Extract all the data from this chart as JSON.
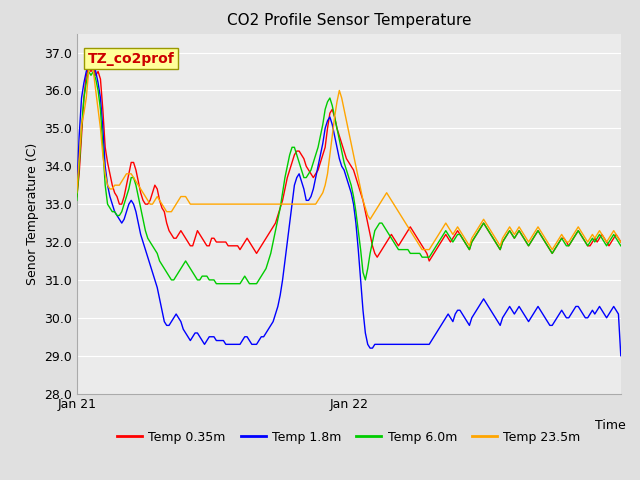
{
  "title": "CO2 Profile Sensor Temperature",
  "ylabel": "Senor Temperature (C)",
  "xlabel": "Time",
  "ylim": [
    28.0,
    37.5
  ],
  "yticks": [
    28.0,
    29.0,
    30.0,
    31.0,
    32.0,
    33.0,
    34.0,
    35.0,
    36.0,
    37.0
  ],
  "colors": {
    "red": "#FF0000",
    "blue": "#0000FF",
    "green": "#00CC00",
    "orange": "#FFA500"
  },
  "annotation_box": {
    "text": "TZ_co2prof",
    "facecolor": "#FFFF99",
    "edgecolor": "#999900",
    "textcolor": "#CC0000",
    "fontsize": 10,
    "fontweight": "bold"
  },
  "legend_labels": [
    "Temp 0.35m",
    "Temp 1.8m",
    "Temp 6.0m",
    "Temp 23.5m"
  ],
  "background_color": "#E0E0E0",
  "plot_bg_color": "#EBEBEB",
  "grid_color": "#FFFFFF",
  "x_tick_labels": [
    "Jan 21",
    "Jan 22"
  ],
  "x_tick_positions": [
    0,
    0.5
  ],
  "total_points": 100,
  "red_data": [
    33.2,
    33.8,
    34.8,
    35.8,
    36.4,
    36.6,
    36.5,
    36.6,
    36.4,
    36.5,
    36.3,
    35.5,
    34.5,
    34.1,
    33.8,
    33.5,
    33.3,
    33.2,
    33.0,
    33.0,
    33.2,
    33.5,
    33.8,
    34.1,
    34.1,
    33.9,
    33.6,
    33.3,
    33.1,
    33.0,
    33.0,
    33.1,
    33.3,
    33.5,
    33.4,
    33.1,
    32.9,
    32.8,
    32.5,
    32.3,
    32.2,
    32.1,
    32.1,
    32.2,
    32.3,
    32.2,
    32.1,
    32.0,
    31.9,
    31.9,
    32.1,
    32.3,
    32.2,
    32.1,
    32.0,
    31.9,
    31.9,
    32.1,
    32.1,
    32.0,
    32.0,
    32.0,
    32.0,
    32.0,
    31.9,
    31.9,
    31.9,
    31.9,
    31.9,
    31.8,
    31.9,
    32.0,
    32.1,
    32.0,
    31.9,
    31.8,
    31.7,
    31.8,
    31.9,
    32.0,
    32.1,
    32.2,
    32.3,
    32.4,
    32.5,
    32.7,
    32.9,
    33.1,
    33.4,
    33.7,
    33.9,
    34.1,
    34.3,
    34.4,
    34.4,
    34.3,
    34.2,
    34.0,
    33.9,
    33.8,
    33.7,
    33.8,
    33.9,
    34.1,
    34.3,
    34.5,
    35.0,
    35.4,
    35.5,
    35.3,
    35.0,
    34.8,
    34.6,
    34.4,
    34.2,
    34.1,
    34.0,
    33.9,
    33.7,
    33.5,
    33.3,
    33.1,
    32.8,
    32.5,
    32.2,
    31.9,
    31.7,
    31.6,
    31.7,
    31.8,
    31.9,
    32.0,
    32.1,
    32.2,
    32.1,
    32.0,
    31.9,
    32.0,
    32.1,
    32.2,
    32.3,
    32.4,
    32.3,
    32.2,
    32.1,
    32.0,
    31.9,
    31.8,
    31.7,
    31.5,
    31.6,
    31.7,
    31.8,
    31.9,
    32.0,
    32.1,
    32.2,
    32.1,
    32.0,
    32.1,
    32.2,
    32.3,
    32.2,
    32.1,
    32.0,
    31.9,
    31.8,
    32.0,
    32.1,
    32.2,
    32.3,
    32.4,
    32.5,
    32.4,
    32.3,
    32.2,
    32.1,
    32.0,
    31.9,
    31.8,
    32.0,
    32.1,
    32.2,
    32.3,
    32.2,
    32.1,
    32.2,
    32.3,
    32.2,
    32.1,
    32.0,
    31.9,
    32.0,
    32.1,
    32.2,
    32.3,
    32.2,
    32.1,
    32.0,
    31.9,
    31.8,
    31.7,
    31.8,
    31.9,
    32.0,
    32.1,
    32.1,
    32.0,
    31.9,
    32.0,
    32.1,
    32.2,
    32.3,
    32.2,
    32.1,
    32.0,
    31.9,
    31.9,
    32.0,
    32.1,
    32.0,
    32.1,
    32.2,
    32.1,
    32.0,
    31.9,
    32.0,
    32.1,
    32.2,
    32.1,
    32.0
  ],
  "blue_data": [
    33.3,
    34.8,
    35.8,
    36.2,
    36.5,
    36.7,
    36.6,
    36.7,
    36.5,
    36.2,
    35.8,
    35.0,
    34.0,
    33.5,
    33.2,
    33.0,
    32.8,
    32.7,
    32.6,
    32.5,
    32.6,
    32.8,
    33.0,
    33.1,
    33.0,
    32.8,
    32.5,
    32.2,
    32.0,
    31.8,
    31.6,
    31.4,
    31.2,
    31.0,
    30.8,
    30.5,
    30.2,
    29.9,
    29.8,
    29.8,
    29.9,
    30.0,
    30.1,
    30.0,
    29.9,
    29.7,
    29.6,
    29.5,
    29.4,
    29.5,
    29.6,
    29.6,
    29.5,
    29.4,
    29.3,
    29.4,
    29.5,
    29.5,
    29.5,
    29.4,
    29.4,
    29.4,
    29.4,
    29.3,
    29.3,
    29.3,
    29.3,
    29.3,
    29.3,
    29.3,
    29.4,
    29.5,
    29.5,
    29.4,
    29.3,
    29.3,
    29.3,
    29.4,
    29.5,
    29.5,
    29.6,
    29.7,
    29.8,
    29.9,
    30.1,
    30.3,
    30.6,
    31.0,
    31.5,
    32.0,
    32.5,
    33.0,
    33.5,
    33.7,
    33.8,
    33.6,
    33.4,
    33.1,
    33.1,
    33.2,
    33.4,
    33.7,
    34.0,
    34.3,
    34.6,
    35.0,
    35.2,
    35.3,
    35.1,
    34.8,
    34.5,
    34.2,
    34.0,
    33.9,
    33.7,
    33.5,
    33.3,
    33.0,
    32.5,
    31.8,
    31.0,
    30.2,
    29.6,
    29.3,
    29.2,
    29.2,
    29.3,
    29.3,
    29.3,
    29.3,
    29.3,
    29.3,
    29.3,
    29.3,
    29.3,
    29.3,
    29.3,
    29.3,
    29.3,
    29.3,
    29.3,
    29.3,
    29.3,
    29.3,
    29.3,
    29.3,
    29.3,
    29.3,
    29.3,
    29.3,
    29.4,
    29.5,
    29.6,
    29.7,
    29.8,
    29.9,
    30.0,
    30.1,
    30.0,
    29.9,
    30.1,
    30.2,
    30.2,
    30.1,
    30.0,
    29.9,
    29.8,
    30.0,
    30.1,
    30.2,
    30.3,
    30.4,
    30.5,
    30.4,
    30.3,
    30.2,
    30.1,
    30.0,
    29.9,
    29.8,
    30.0,
    30.1,
    30.2,
    30.3,
    30.2,
    30.1,
    30.2,
    30.3,
    30.2,
    30.1,
    30.0,
    29.9,
    30.0,
    30.1,
    30.2,
    30.3,
    30.2,
    30.1,
    30.0,
    29.9,
    29.8,
    29.8,
    29.9,
    30.0,
    30.1,
    30.2,
    30.1,
    30.0,
    30.0,
    30.1,
    30.2,
    30.3,
    30.3,
    30.2,
    30.1,
    30.0,
    30.0,
    30.1,
    30.2,
    30.1,
    30.2,
    30.3,
    30.2,
    30.1,
    30.0,
    30.1,
    30.2,
    30.3,
    30.2,
    30.1,
    29.0
  ],
  "green_data": [
    33.1,
    34.0,
    35.0,
    35.8,
    36.2,
    36.5,
    36.4,
    36.5,
    36.3,
    36.0,
    35.5,
    34.5,
    33.5,
    33.0,
    32.9,
    32.8,
    32.8,
    32.7,
    32.7,
    32.8,
    33.0,
    33.2,
    33.4,
    33.7,
    33.7,
    33.5,
    33.2,
    32.9,
    32.6,
    32.3,
    32.1,
    32.0,
    31.9,
    31.8,
    31.7,
    31.5,
    31.4,
    31.3,
    31.2,
    31.1,
    31.0,
    31.0,
    31.1,
    31.2,
    31.3,
    31.4,
    31.5,
    31.4,
    31.3,
    31.2,
    31.1,
    31.0,
    31.0,
    31.1,
    31.1,
    31.1,
    31.0,
    31.0,
    31.0,
    30.9,
    30.9,
    30.9,
    30.9,
    30.9,
    30.9,
    30.9,
    30.9,
    30.9,
    30.9,
    30.9,
    31.0,
    31.1,
    31.0,
    30.9,
    30.9,
    30.9,
    30.9,
    31.0,
    31.1,
    31.2,
    31.3,
    31.5,
    31.7,
    32.0,
    32.3,
    32.6,
    32.9,
    33.3,
    33.7,
    34.0,
    34.3,
    34.5,
    34.5,
    34.3,
    34.1,
    33.9,
    33.7,
    33.7,
    33.8,
    33.9,
    34.1,
    34.3,
    34.5,
    34.8,
    35.1,
    35.5,
    35.7,
    35.8,
    35.6,
    35.3,
    35.0,
    34.7,
    34.4,
    34.1,
    33.9,
    33.7,
    33.5,
    33.2,
    32.8,
    32.3,
    31.8,
    31.2,
    31.0,
    31.3,
    31.7,
    32.0,
    32.3,
    32.4,
    32.5,
    32.5,
    32.4,
    32.3,
    32.2,
    32.1,
    32.0,
    31.9,
    31.8,
    31.8,
    31.8,
    31.8,
    31.8,
    31.7,
    31.7,
    31.7,
    31.7,
    31.7,
    31.6,
    31.6,
    31.6,
    31.6,
    31.7,
    31.8,
    31.9,
    32.0,
    32.1,
    32.2,
    32.3,
    32.2,
    32.1,
    32.0,
    32.1,
    32.2,
    32.2,
    32.1,
    32.0,
    31.9,
    31.8,
    32.0,
    32.1,
    32.2,
    32.3,
    32.4,
    32.5,
    32.4,
    32.3,
    32.2,
    32.1,
    32.0,
    31.9,
    31.8,
    32.0,
    32.1,
    32.2,
    32.3,
    32.2,
    32.1,
    32.2,
    32.3,
    32.2,
    32.1,
    32.0,
    31.9,
    32.0,
    32.1,
    32.2,
    32.3,
    32.2,
    32.1,
    32.0,
    31.9,
    31.8,
    31.7,
    31.8,
    31.9,
    32.0,
    32.1,
    32.0,
    31.9,
    31.9,
    32.0,
    32.1,
    32.2,
    32.3,
    32.2,
    32.1,
    32.0,
    31.9,
    32.0,
    32.1,
    32.0,
    32.1,
    32.2,
    32.1,
    32.0,
    31.9,
    32.0,
    32.1,
    32.2,
    32.1,
    32.0,
    31.9
  ],
  "orange_data": [
    33.3,
    34.2,
    35.1,
    35.4,
    35.8,
    36.5,
    36.7,
    36.5,
    36.0,
    35.5,
    35.0,
    34.3,
    33.8,
    33.5,
    33.4,
    33.4,
    33.5,
    33.5,
    33.5,
    33.6,
    33.7,
    33.8,
    33.8,
    33.8,
    33.7,
    33.6,
    33.5,
    33.4,
    33.3,
    33.2,
    33.1,
    33.0,
    33.0,
    33.1,
    33.2,
    33.1,
    33.0,
    32.9,
    32.8,
    32.8,
    32.8,
    32.9,
    33.0,
    33.1,
    33.2,
    33.2,
    33.2,
    33.1,
    33.0,
    33.0,
    33.0,
    33.0,
    33.0,
    33.0,
    33.0,
    33.0,
    33.0,
    33.0,
    33.0,
    33.0,
    33.0,
    33.0,
    33.0,
    33.0,
    33.0,
    33.0,
    33.0,
    33.0,
    33.0,
    33.0,
    33.0,
    33.0,
    33.0,
    33.0,
    33.0,
    33.0,
    33.0,
    33.0,
    33.0,
    33.0,
    33.0,
    33.0,
    33.0,
    33.0,
    33.0,
    33.0,
    33.0,
    33.0,
    33.0,
    33.0,
    33.0,
    33.0,
    33.0,
    33.0,
    33.0,
    33.0,
    33.0,
    33.0,
    33.0,
    33.0,
    33.0,
    33.0,
    33.1,
    33.2,
    33.3,
    33.5,
    33.8,
    34.3,
    34.8,
    35.3,
    35.7,
    36.0,
    35.8,
    35.5,
    35.2,
    34.9,
    34.6,
    34.3,
    34.0,
    33.7,
    33.4,
    33.1,
    32.9,
    32.7,
    32.6,
    32.7,
    32.8,
    32.9,
    33.0,
    33.1,
    33.2,
    33.3,
    33.2,
    33.1,
    33.0,
    32.9,
    32.8,
    32.7,
    32.6,
    32.5,
    32.4,
    32.3,
    32.2,
    32.1,
    32.0,
    31.9,
    31.8,
    31.8,
    31.8,
    31.8,
    31.9,
    32.0,
    32.1,
    32.2,
    32.3,
    32.4,
    32.5,
    32.4,
    32.3,
    32.2,
    32.3,
    32.4,
    32.3,
    32.2,
    32.1,
    32.0,
    31.9,
    32.1,
    32.2,
    32.3,
    32.4,
    32.5,
    32.6,
    32.5,
    32.4,
    32.3,
    32.2,
    32.1,
    32.0,
    31.9,
    32.1,
    32.2,
    32.3,
    32.4,
    32.3,
    32.2,
    32.3,
    32.4,
    32.3,
    32.2,
    32.1,
    32.0,
    32.1,
    32.2,
    32.3,
    32.4,
    32.3,
    32.2,
    32.1,
    32.0,
    31.9,
    31.8,
    31.9,
    32.0,
    32.1,
    32.2,
    32.1,
    32.0,
    32.0,
    32.1,
    32.2,
    32.3,
    32.4,
    32.3,
    32.2,
    32.1,
    32.0,
    32.1,
    32.2,
    32.1,
    32.2,
    32.3,
    32.2,
    32.1,
    32.0,
    32.1,
    32.2,
    32.3,
    32.2,
    32.1,
    32.0
  ]
}
